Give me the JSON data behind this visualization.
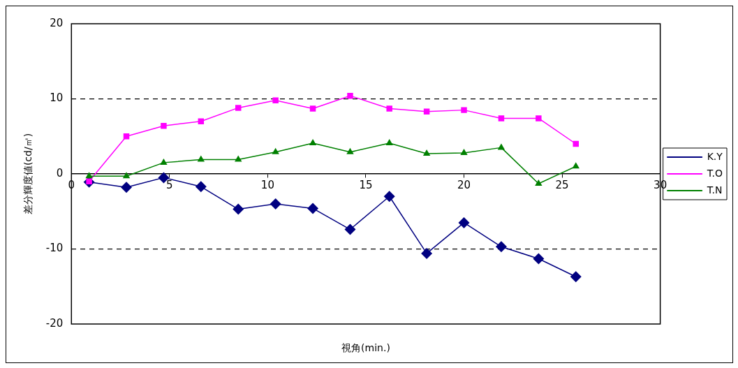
{
  "chart_data": {
    "type": "line",
    "xlabel": "視角(min.)",
    "ylabel": "差分輝度値(cd/㎡)",
    "x": [
      0.9,
      2.8,
      4.7,
      6.6,
      8.5,
      10.4,
      12.3,
      14.2,
      16.2,
      18.1,
      20.0,
      21.9,
      23.8,
      25.7
    ],
    "series": [
      {
        "name": "K.Y",
        "color": "#000080",
        "marker": "diamond",
        "values": [
          -1.1,
          -1.8,
          -0.5,
          -1.7,
          -4.7,
          -4.0,
          -4.6,
          -7.4,
          -3.0,
          -10.6,
          -6.5,
          -9.7,
          -11.3,
          -13.7
        ]
      },
      {
        "name": "T.O",
        "color": "#ff00ff",
        "marker": "square",
        "values": [
          -1.0,
          5.0,
          6.4,
          7.0,
          8.8,
          9.8,
          8.7,
          10.4,
          8.7,
          8.3,
          8.5,
          7.4,
          7.4,
          4.0
        ]
      },
      {
        "name": "T.N",
        "color": "#008000",
        "marker": "triangle",
        "values": [
          -0.3,
          -0.3,
          1.5,
          1.9,
          1.9,
          2.9,
          4.1,
          2.9,
          4.1,
          2.7,
          2.8,
          3.5,
          -1.3,
          1.0
        ]
      }
    ],
    "xlim": [
      0,
      30
    ],
    "xticks": [
      0,
      5,
      10,
      15,
      20,
      25,
      30
    ],
    "ylim": [
      -20,
      20
    ],
    "yticks": [
      -20,
      -10,
      0,
      10,
      20
    ],
    "grid": "y",
    "legend": "right",
    "line_style": "solid"
  }
}
